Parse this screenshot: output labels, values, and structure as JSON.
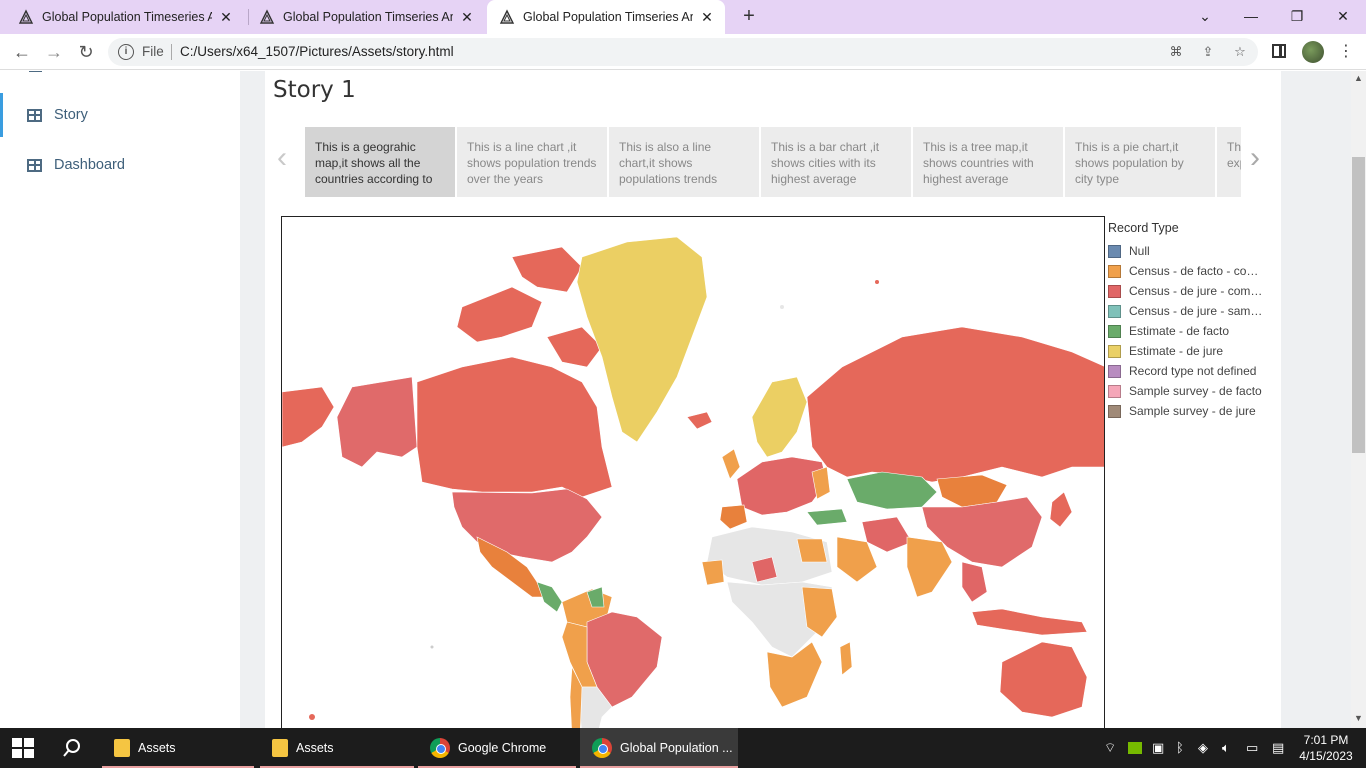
{
  "browser": {
    "tabs": [
      {
        "title": "Global Population Timeseries Anal",
        "active": false
      },
      {
        "title": "Global Population Timseries Anal",
        "active": false
      },
      {
        "title": "Global Population Timseries Anal",
        "active": true
      }
    ],
    "new_tab": "+",
    "file_label": "File",
    "url": "C:/Users/x64_1507/Pictures/Assets/story.html"
  },
  "nav": {
    "items": [
      {
        "label": "Story",
        "active": true
      },
      {
        "label": "Dashboard",
        "active": false
      }
    ]
  },
  "story": {
    "title": "Story 1",
    "points": [
      "This is a geograhic map,it shows all the countries according to",
      "This is a line chart ,it shows population trends over the years",
      "This is also a line chart,it shows populations trends",
      "This is a bar chart ,it shows cities with its highest average",
      "This is a tree map,it shows countries with highest average",
      "This is a pie chart,it shows population by city type",
      "This is a chart, it explains population"
    ]
  },
  "legend": {
    "title": "Record Type",
    "items": [
      {
        "label": "Null",
        "color": "#6a8ab0"
      },
      {
        "label": "Census - de facto - complete tabulation",
        "color": "#f0a04b"
      },
      {
        "label": "Census - de jure - complete tabulation",
        "color": "#e06666"
      },
      {
        "label": "Census - de jure - sample tabulation",
        "color": "#7fc1b9"
      },
      {
        "label": "Estimate - de facto",
        "color": "#6aab6a"
      },
      {
        "label": "Estimate - de jure",
        "color": "#ead066"
      },
      {
        "label": "Record type not defined",
        "color": "#b88cc0"
      },
      {
        "label": "Sample survey - de facto",
        "color": "#f5a6b8"
      },
      {
        "label": "Sample survey - de jure",
        "color": "#a08a78"
      }
    ]
  },
  "map_colors": {
    "ocean": "#ffffff",
    "no_data": "#e6e6e6",
    "census_de_facto": "#f0a04b",
    "census_de_jure": "#e06666",
    "estimate_de_facto": "#6aab6a",
    "estimate_de_jure": "#ead066",
    "russia_canada": "#e5685a"
  },
  "taskbar": {
    "apps": [
      {
        "label": "Assets",
        "icon": "folder-icon"
      },
      {
        "label": "Assets",
        "icon": "folder-icon"
      },
      {
        "label": "Google Chrome",
        "icon": "chrome-icon"
      },
      {
        "label": "Global Population ...",
        "icon": "chrome-icon"
      }
    ],
    "time": "7:01 PM",
    "date": "4/15/2023"
  }
}
